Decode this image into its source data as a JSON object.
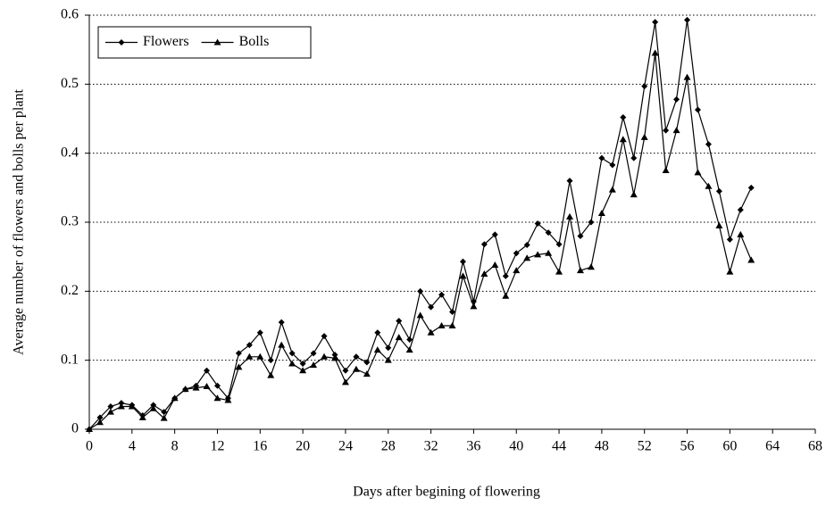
{
  "chart_data": {
    "type": "line",
    "x": [
      0,
      1,
      2,
      3,
      4,
      5,
      6,
      7,
      8,
      9,
      10,
      11,
      12,
      13,
      14,
      15,
      16,
      17,
      18,
      19,
      20,
      21,
      22,
      23,
      24,
      25,
      26,
      27,
      28,
      29,
      30,
      31,
      32,
      33,
      34,
      35,
      36,
      37,
      38,
      39,
      40,
      41,
      42,
      43,
      44,
      45,
      46,
      47,
      48,
      49,
      50,
      51,
      52,
      53,
      54,
      55,
      56,
      57,
      58,
      59,
      60,
      61,
      62
    ],
    "series": [
      {
        "name": "Flowers",
        "color": "#000000",
        "marker": "diamond",
        "values": [
          0,
          0.017,
          0.033,
          0.038,
          0.035,
          0.02,
          0.035,
          0.025,
          0.045,
          0.058,
          0.063,
          0.085,
          0.063,
          0.045,
          0.11,
          0.122,
          0.14,
          0.1,
          0.155,
          0.11,
          0.095,
          0.11,
          0.135,
          0.108,
          0.085,
          0.105,
          0.097,
          0.14,
          0.118,
          0.157,
          0.13,
          0.2,
          0.177,
          0.195,
          0.17,
          0.243,
          0.185,
          0.268,
          0.282,
          0.222,
          0.255,
          0.267,
          0.298,
          0.285,
          0.268,
          0.36,
          0.28,
          0.3,
          0.393,
          0.383,
          0.452,
          0.393,
          0.497,
          0.59,
          0.433,
          0.478,
          0.593,
          0.463,
          0.413,
          0.345,
          0.275,
          0.318,
          0.35
        ]
      },
      {
        "name": "Bolls",
        "color": "#000000",
        "marker": "triangle",
        "values": [
          0,
          0.01,
          0.025,
          0.033,
          0.033,
          0.017,
          0.03,
          0.016,
          0.045,
          0.058,
          0.06,
          0.062,
          0.045,
          0.042,
          0.09,
          0.105,
          0.105,
          0.078,
          0.122,
          0.095,
          0.085,
          0.093,
          0.105,
          0.103,
          0.068,
          0.087,
          0.08,
          0.115,
          0.1,
          0.133,
          0.115,
          0.165,
          0.14,
          0.15,
          0.15,
          0.222,
          0.178,
          0.225,
          0.238,
          0.193,
          0.23,
          0.248,
          0.253,
          0.255,
          0.228,
          0.308,
          0.23,
          0.235,
          0.313,
          0.347,
          0.42,
          0.34,
          0.423,
          0.545,
          0.375,
          0.433,
          0.51,
          0.372,
          0.352,
          0.295,
          0.228,
          0.282,
          0.245
        ]
      }
    ],
    "xlabel": "Days after begining of flowering",
    "ylabel": "Average number of flowers and bolls per plant",
    "xlim": [
      0,
      68
    ],
    "xticks": [
      0,
      4,
      8,
      12,
      16,
      20,
      24,
      28,
      32,
      36,
      40,
      44,
      48,
      52,
      56,
      60,
      64,
      68
    ],
    "ylim": [
      0,
      0.6
    ],
    "yticks": [
      0,
      0.1,
      0.2,
      0.3,
      0.4,
      0.5,
      0.6
    ],
    "grid": true,
    "legend": "upper-left"
  }
}
